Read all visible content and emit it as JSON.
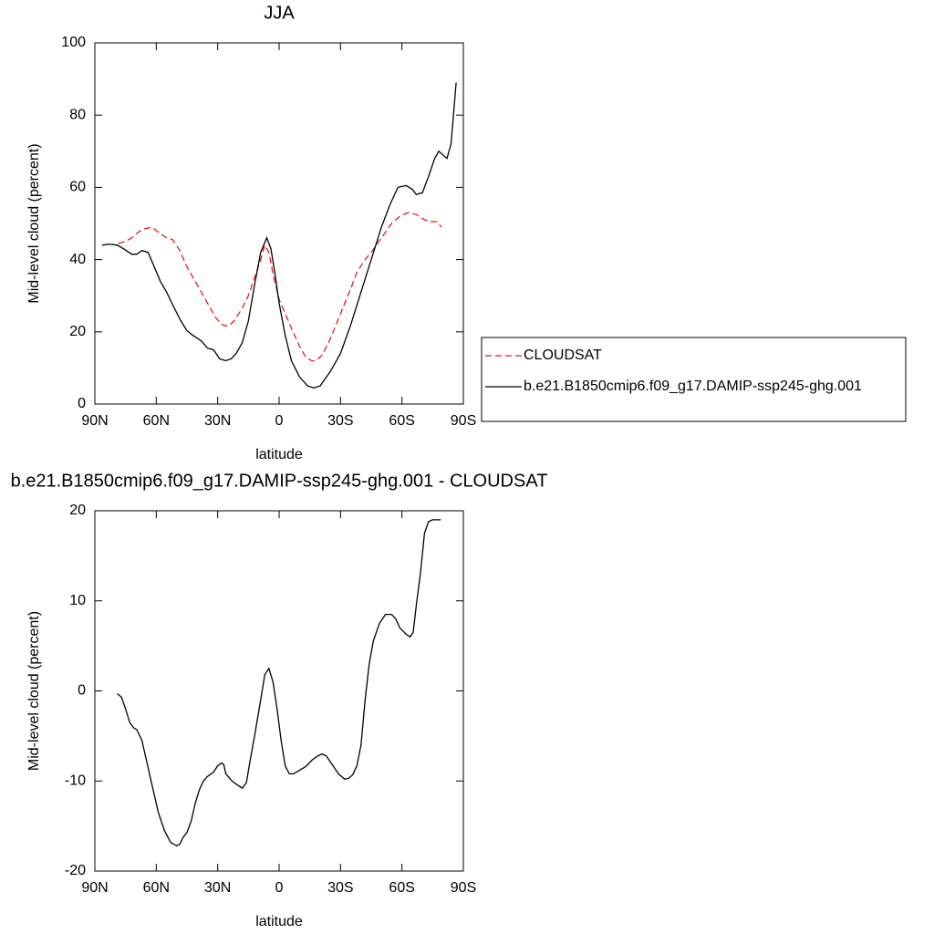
{
  "chart_data": [
    {
      "type": "line",
      "title": "JJA",
      "xlabel": "latitude",
      "ylabel": "Mid-level cloud (percent)",
      "xlim": [
        90,
        -90
      ],
      "ylim": [
        0,
        100
      ],
      "xticks": [
        {
          "value": 90,
          "label": "90N"
        },
        {
          "value": 60,
          "label": "60N"
        },
        {
          "value": 30,
          "label": "30N"
        },
        0,
        {
          "value": -30,
          "label": "30S"
        },
        {
          "value": -60,
          "label": "60S"
        },
        {
          "value": -90,
          "label": "90S"
        }
      ],
      "yticks": [
        0,
        20,
        40,
        60,
        80,
        100
      ],
      "legend": "right",
      "series": [
        {
          "name": "CLOUDSAT",
          "color": "#e8191e",
          "dashed": true,
          "x": [
            78.5,
            75,
            72,
            69,
            66,
            62,
            59,
            55,
            52,
            49,
            45,
            42,
            39,
            35,
            31,
            28,
            25,
            22,
            18,
            15,
            12,
            9,
            7,
            5,
            3,
            0,
            -3,
            -6,
            -10,
            -13,
            -16,
            -18,
            -21,
            -25,
            -30,
            -35,
            -38,
            -42,
            -45,
            -50,
            -55,
            -59,
            -63,
            -67,
            -71,
            -74,
            -77,
            -79.3
          ],
          "values": [
            44.5,
            45,
            46,
            47.5,
            48.5,
            49,
            47.5,
            46,
            45.5,
            43,
            38,
            35,
            32,
            28,
            24,
            22,
            21.5,
            23,
            26.5,
            30,
            35,
            40,
            44,
            42,
            36,
            29,
            25,
            21,
            16,
            13,
            12,
            12,
            13.5,
            18,
            25,
            32,
            36.5,
            40,
            42,
            46,
            50,
            52,
            53,
            52.5,
            51,
            50.5,
            50.5,
            49
          ]
        },
        {
          "name": "b.e21.B1850cmip6.f09_g17.DAMIP-ssp245-ghg.001",
          "color": "#000000",
          "dashed": false,
          "x": [
            86.5,
            83,
            79,
            76,
            72,
            69.5,
            67,
            64,
            61,
            58,
            55,
            52,
            48,
            45,
            42,
            38,
            35,
            32,
            29,
            26,
            23.5,
            21,
            18,
            15,
            12,
            9,
            6,
            4,
            2,
            0,
            -3,
            -6,
            -10,
            -14,
            -17,
            -20,
            -25,
            -30,
            -35,
            -40,
            -45,
            -50,
            -54,
            -58,
            -62,
            -65,
            -67,
            -70,
            -73,
            -76,
            -78,
            -80,
            -82,
            -84,
            -86.5
          ],
          "values": [
            44,
            44.3,
            44,
            43,
            41.5,
            41.5,
            42.5,
            42,
            38,
            34,
            31,
            27.5,
            23,
            20.3,
            19,
            17.5,
            15.5,
            15,
            12.5,
            12,
            12.5,
            14,
            17,
            23,
            33,
            42,
            46,
            43,
            36,
            28,
            19,
            12,
            7.5,
            5,
            4.5,
            5,
            9,
            14,
            22,
            31,
            40,
            49,
            55,
            60,
            60.5,
            59.5,
            58,
            58.5,
            63,
            68,
            70,
            69,
            68,
            72,
            89
          ]
        }
      ]
    },
    {
      "type": "line",
      "title": "b.e21.B1850cmip6.f09_g17.DAMIP-ssp245-ghg.001 - CLOUDSAT",
      "xlabel": "latitude",
      "ylabel": "Mid-level cloud (percent)",
      "xlim": [
        90,
        -90
      ],
      "ylim": [
        -20,
        20
      ],
      "xticks": [
        {
          "value": 90,
          "label": "90N"
        },
        {
          "value": 60,
          "label": "60N"
        },
        {
          "value": 30,
          "label": "30N"
        },
        0,
        {
          "value": -30,
          "label": "30S"
        },
        {
          "value": -60,
          "label": "60S"
        },
        {
          "value": -90,
          "label": "90S"
        }
      ],
      "yticks": [
        -20,
        -10,
        0,
        10,
        20
      ],
      "series": [
        {
          "color": "#000000",
          "dashed": false,
          "x": [
            79,
            77,
            75,
            73,
            71,
            69.5,
            67,
            65,
            62,
            59,
            56,
            53,
            50,
            48.5,
            47,
            45,
            43,
            41,
            39,
            37,
            35,
            32,
            30,
            28,
            27,
            26,
            23,
            20,
            18,
            16,
            14,
            12,
            9,
            7,
            5,
            3,
            1,
            -1,
            -3,
            -5,
            -7,
            -10,
            -13,
            -16,
            -19,
            -21,
            -23,
            -26,
            -29,
            -32,
            -34,
            -36,
            -38,
            -40,
            -42,
            -44,
            -46,
            -49,
            -52,
            -55,
            -57,
            -59,
            -62,
            -64,
            -65.5,
            -67,
            -69,
            -71,
            -73,
            -75,
            -77,
            -79
          ],
          "values": [
            -0.3,
            -0.7,
            -2,
            -3.5,
            -4.1,
            -4.3,
            -5.5,
            -7.5,
            -10.5,
            -13.5,
            -15.5,
            -16.8,
            -17.2,
            -17,
            -16.3,
            -15.7,
            -14.5,
            -12.5,
            -11,
            -10,
            -9.5,
            -9,
            -8.3,
            -8,
            -8.2,
            -9.2,
            -10,
            -10.5,
            -10.8,
            -10.2,
            -7.5,
            -5,
            -1,
            1.8,
            2.5,
            1,
            -2,
            -5.5,
            -8.3,
            -9.2,
            -9.2,
            -8.8,
            -8.4,
            -7.7,
            -7.2,
            -7,
            -7.2,
            -8.2,
            -9.2,
            -9.8,
            -9.7,
            -9.3,
            -8.3,
            -6,
            -1,
            3,
            5.5,
            7.5,
            8.5,
            8.5,
            8,
            7,
            6.3,
            6,
            6.5,
            9.5,
            13,
            17.5,
            18.8,
            19,
            19,
            19
          ]
        }
      ]
    }
  ]
}
